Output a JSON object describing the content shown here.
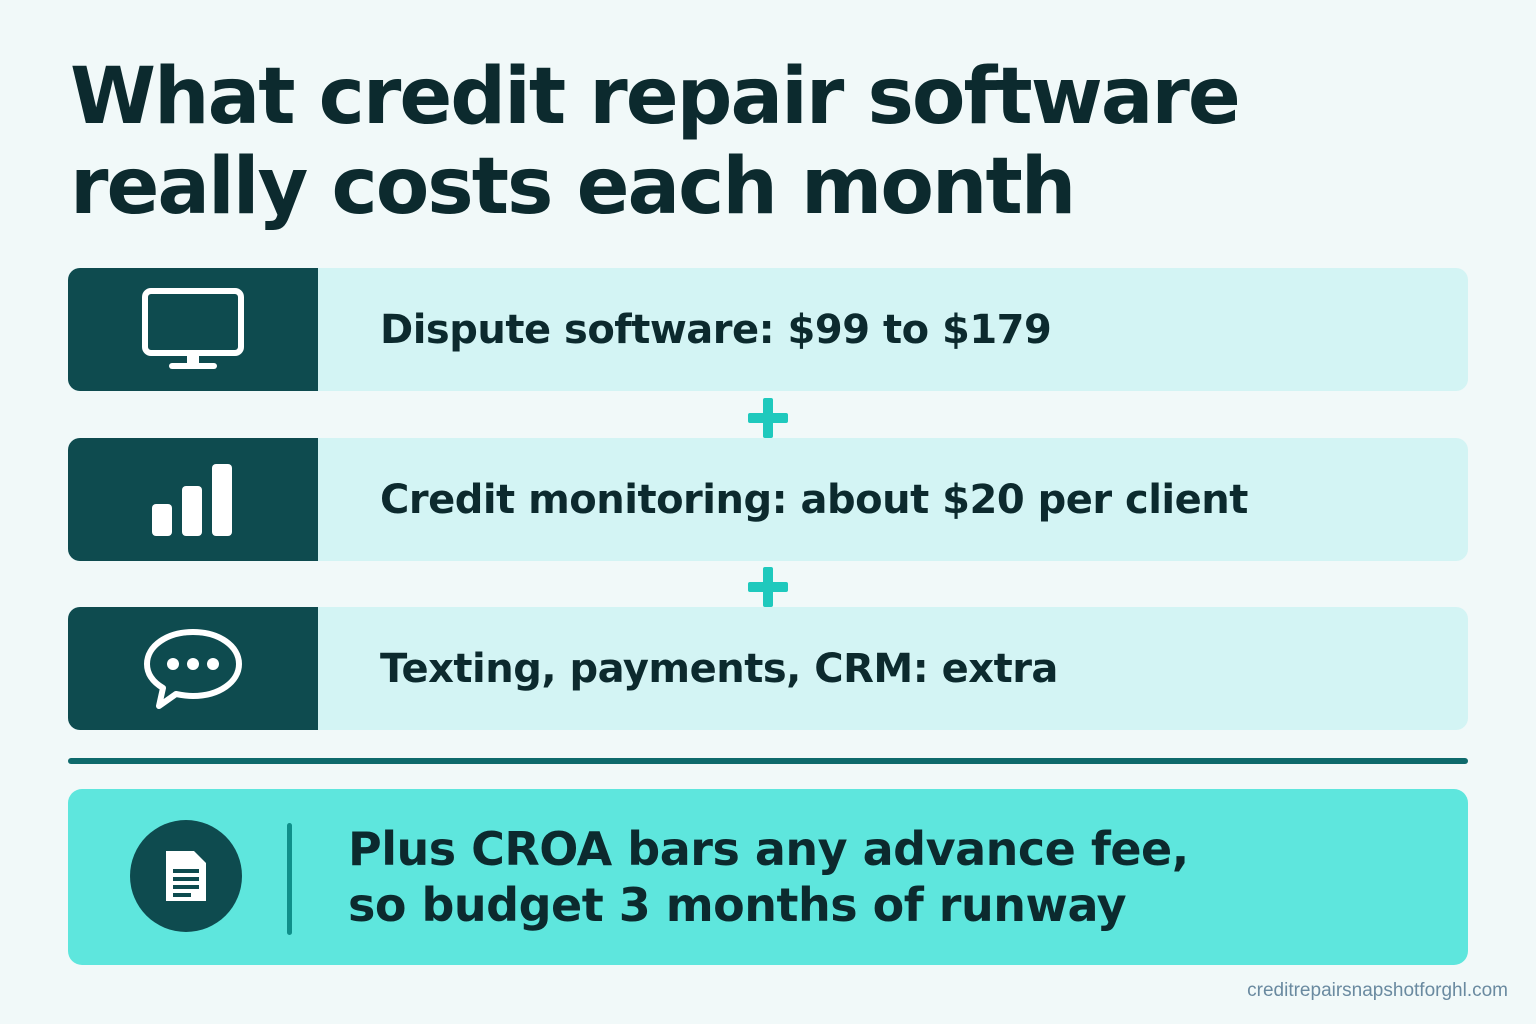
{
  "title": {
    "line1": "What credit repair software",
    "line2": "really costs each month"
  },
  "rows": [
    {
      "icon": "monitor-icon",
      "label": "Dispute software: $99 to $179"
    },
    {
      "icon": "bar-chart-icon",
      "label": "Credit monitoring: about $20 per client"
    },
    {
      "icon": "chat-bubble-icon",
      "label": "Texting, payments, CRM: extra"
    }
  ],
  "separator_icon": "plus-icon",
  "callout": {
    "icon": "document-icon",
    "line1": "Plus CROA bars any advance fee,",
    "line2": "so budget 3 months of runway"
  },
  "footer": {
    "site": "creditrepairsnapshotforghl.com"
  },
  "colors": {
    "background": "#f1f9f9",
    "dark_teal": "#0e4b4f",
    "row_fill": "#d3f4f4",
    "accent_teal": "#1fc9bd",
    "callout_fill": "#5ee6dd",
    "text": "#0c2a2e"
  }
}
